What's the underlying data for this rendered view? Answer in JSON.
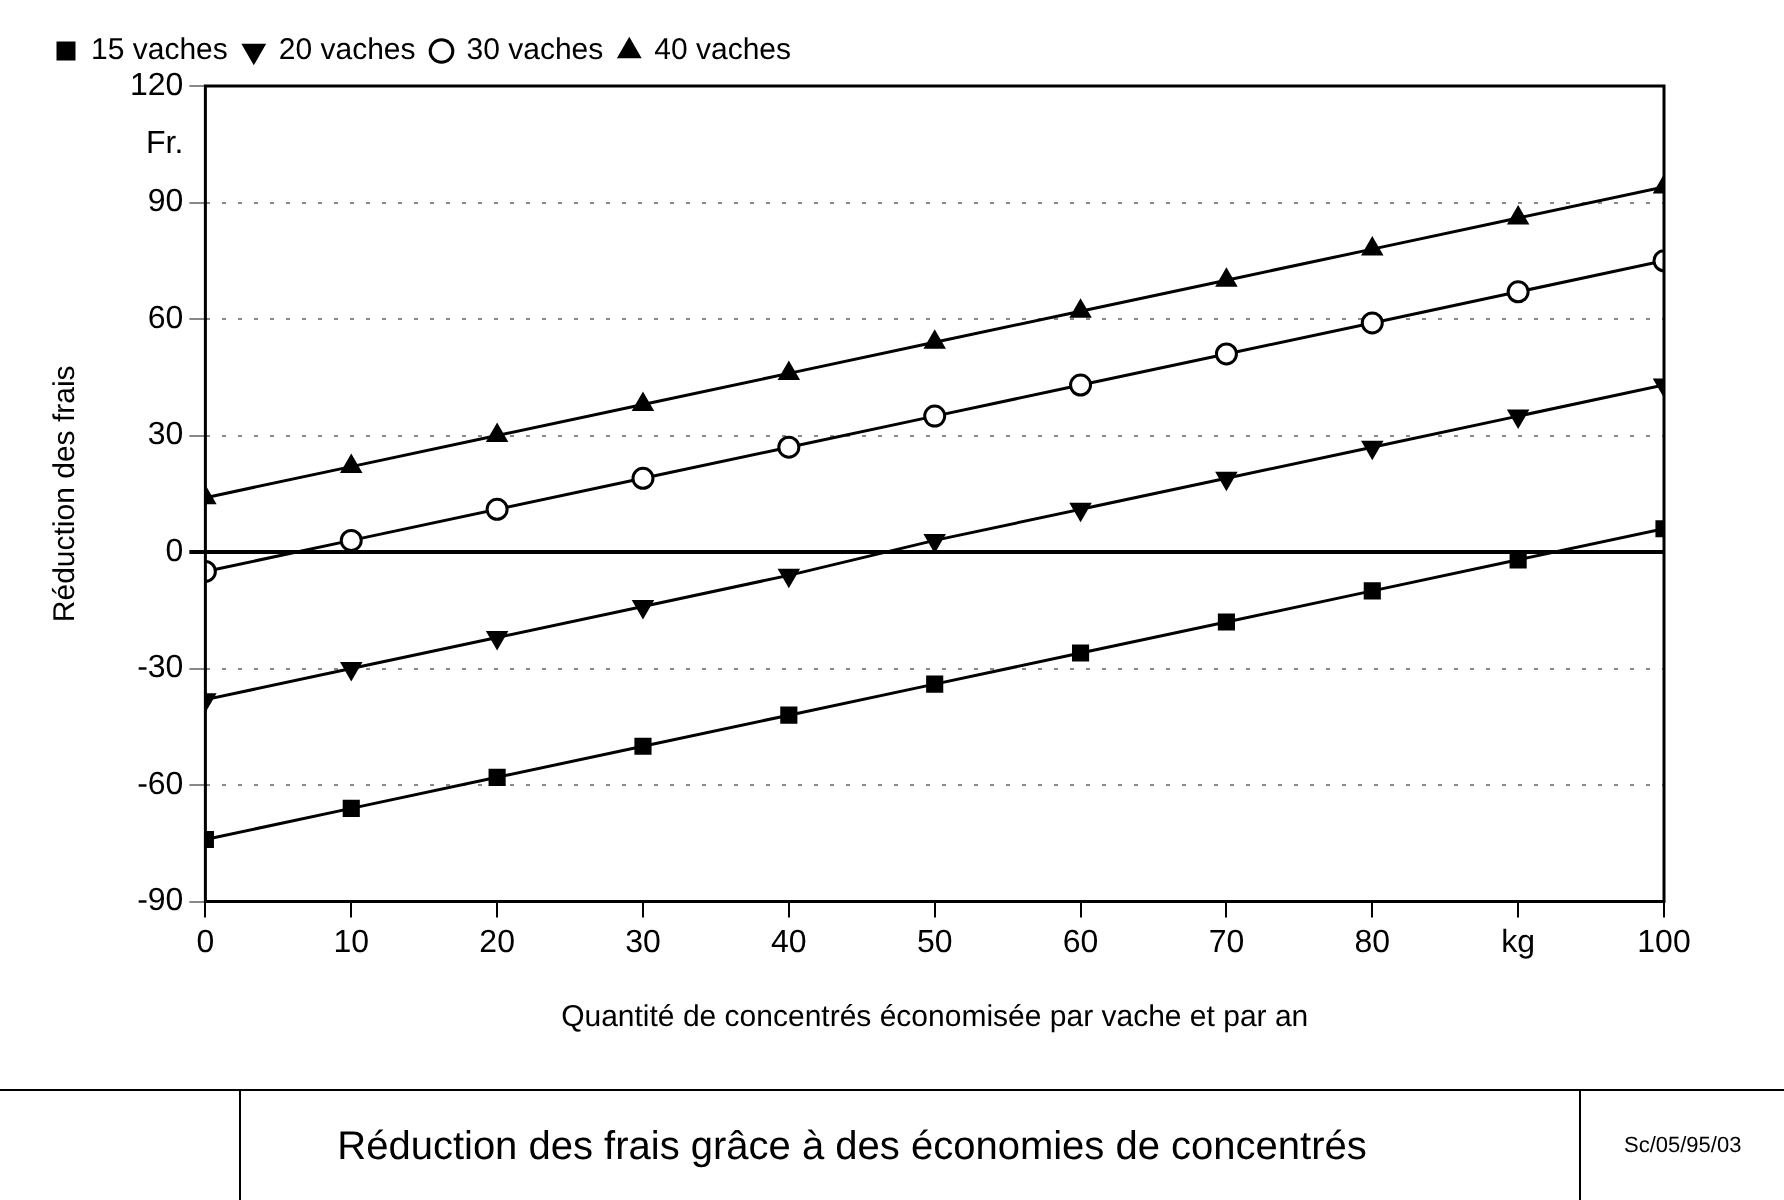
{
  "chart_data": {
    "type": "line",
    "title": "Réduction des frais grâce à des économies de concentrés",
    "xlabel": "Quantité de concentrés économisée par vache et par an",
    "ylabel": "Réduction des frais",
    "annotations": [
      "Sc/05/95/03"
    ],
    "x": [
      0,
      10,
      20,
      30,
      40,
      50,
      60,
      70,
      80,
      90,
      100
    ],
    "series": [
      {
        "name": "15 vaches",
        "color": "#000000",
        "marker": "square",
        "values": [
          -74,
          -66,
          -58,
          -50,
          -42,
          -34,
          -26,
          -18,
          -10,
          -2,
          6
        ]
      },
      {
        "name": "20 vaches",
        "color": "#000000",
        "marker": "triangle",
        "values": [
          -38,
          -30,
          -22,
          -14,
          -6,
          3,
          11,
          19,
          27,
          35,
          43
        ]
      },
      {
        "name": "30 vaches",
        "color": "#000000",
        "marker": "circle",
        "values": [
          -5,
          3,
          11,
          19,
          27,
          35,
          43,
          51,
          59,
          67,
          75
        ]
      },
      {
        "name": "40 vaches",
        "color": "#000000",
        "marker": "triangle",
        "values": [
          14,
          22,
          30,
          38,
          46,
          54,
          62,
          70,
          78,
          86,
          94
        ]
      }
    ],
    "xlim": [
      0,
      100
    ],
    "xticks": [
      0,
      10,
      20,
      30,
      40,
      50,
      60,
      70,
      80,
      {
        "value": 90,
        "label": "kg"
      },
      100
    ],
    "ylim": [
      -90,
      120
    ],
    "yticks": [
      -90,
      -60,
      -30,
      0,
      30,
      60,
      90,
      {
        "value": 105,
        "label": "Fr."
      },
      120
    ],
    "ref_lines": [
      {
        "axis": "y",
        "value": 0,
        "color": "#000000",
        "line_style": "solid"
      }
    ],
    "grid": "y",
    "legend": "top left",
    "line_style": "solid"
  }
}
